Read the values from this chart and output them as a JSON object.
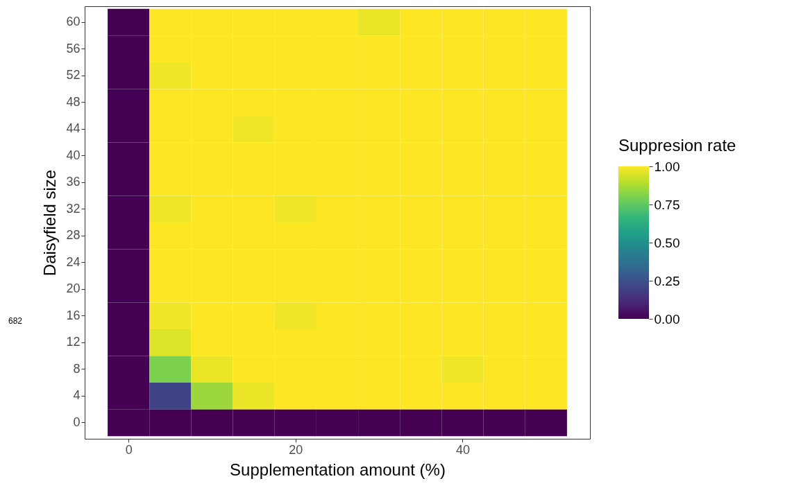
{
  "chart_data": {
    "type": "heatmap",
    "xlabel": "Supplementation amount (%)",
    "ylabel": "Daisyfield size",
    "clabel": "Suppresion rate",
    "x": [
      0,
      5,
      10,
      15,
      20,
      25,
      30,
      35,
      40,
      45,
      50
    ],
    "xlim": [
      -5.25,
      55.25
    ],
    "xticks": [
      0,
      20,
      40
    ],
    "y_categories": [
      "60",
      "56",
      "52",
      "48",
      "44",
      "40",
      "36",
      "32",
      "28",
      "24",
      "20",
      "16",
      "12",
      "8",
      "4",
      "0"
    ],
    "cells": [
      [
        0,
        1,
        1,
        1,
        1,
        1,
        0.97,
        1,
        1,
        1,
        1
      ],
      [
        0,
        1,
        1,
        1,
        1,
        1,
        1,
        1,
        1,
        1,
        1
      ],
      [
        0,
        0.98,
        1,
        1,
        1,
        1,
        1,
        1,
        1,
        1,
        1
      ],
      [
        0,
        1,
        1,
        1,
        1,
        1,
        1,
        1,
        1,
        1,
        1
      ],
      [
        0,
        1,
        1,
        0.98,
        1,
        1,
        1,
        1,
        1,
        1,
        1
      ],
      [
        0,
        1,
        1,
        1,
        1,
        1,
        1,
        1,
        1,
        1,
        1
      ],
      [
        0,
        1,
        1,
        1,
        1,
        1,
        1,
        1,
        1,
        1,
        1
      ],
      [
        0,
        0.98,
        1,
        1,
        0.98,
        1,
        1,
        1,
        1,
        1,
        1
      ],
      [
        0,
        1,
        1,
        1,
        1,
        1,
        1,
        1,
        1,
        1,
        1
      ],
      [
        0,
        1,
        1,
        1,
        1,
        1,
        1,
        1,
        1,
        1,
        1
      ],
      [
        0,
        1,
        1,
        1,
        1,
        1,
        1,
        1,
        1,
        1,
        1
      ],
      [
        0,
        0.98,
        1,
        1,
        0.98,
        1,
        1,
        1,
        1,
        1,
        1
      ],
      [
        0,
        0.95,
        1,
        1,
        1,
        1,
        1,
        1,
        1,
        1,
        1
      ],
      [
        0,
        0.8,
        0.97,
        1,
        1,
        1,
        1,
        1,
        0.98,
        1,
        1
      ],
      [
        0,
        0.2,
        0.85,
        0.97,
        1,
        1,
        1,
        1,
        1,
        1,
        1
      ],
      [
        0,
        0,
        0,
        0,
        0,
        0,
        0,
        0,
        0,
        0,
        0
      ]
    ],
    "clim": [
      0,
      1
    ],
    "cticks": [
      {
        "value": 0,
        "label": "0.00"
      },
      0.25,
      {
        "value": 0.5,
        "label": "0.50"
      },
      0.75,
      {
        "value": 1,
        "label": "1.00"
      }
    ],
    "grid": false,
    "annotations": [
      "682"
    ]
  }
}
